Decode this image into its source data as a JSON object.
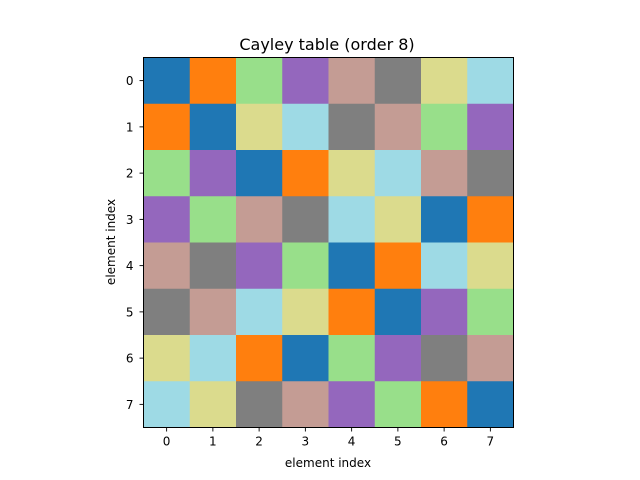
{
  "chart_data": {
    "type": "heatmap",
    "title": "Cayley table (order 8)",
    "xlabel": "element index",
    "ylabel": "element index",
    "x_ticks": [
      "0",
      "1",
      "2",
      "3",
      "4",
      "5",
      "6",
      "7"
    ],
    "y_ticks": [
      "0",
      "1",
      "2",
      "3",
      "4",
      "5",
      "6",
      "7"
    ],
    "matrix": [
      [
        0,
        1,
        2,
        3,
        4,
        5,
        6,
        7
      ],
      [
        1,
        0,
        6,
        7,
        5,
        4,
        2,
        3
      ],
      [
        2,
        3,
        0,
        1,
        6,
        7,
        4,
        5
      ],
      [
        3,
        2,
        4,
        5,
        7,
        6,
        0,
        1
      ],
      [
        4,
        5,
        3,
        2,
        0,
        1,
        7,
        6
      ],
      [
        5,
        4,
        7,
        6,
        1,
        0,
        3,
        2
      ],
      [
        6,
        7,
        1,
        0,
        2,
        3,
        5,
        4
      ],
      [
        7,
        6,
        5,
        4,
        3,
        2,
        1,
        0
      ]
    ],
    "colormap": [
      "#1f77b4",
      "#ff7f0e",
      "#98df8a",
      "#9467bd",
      "#c49c94",
      "#7f7f7f",
      "#dbdb8d",
      "#9edae5"
    ],
    "grid": false,
    "legend": "none"
  }
}
